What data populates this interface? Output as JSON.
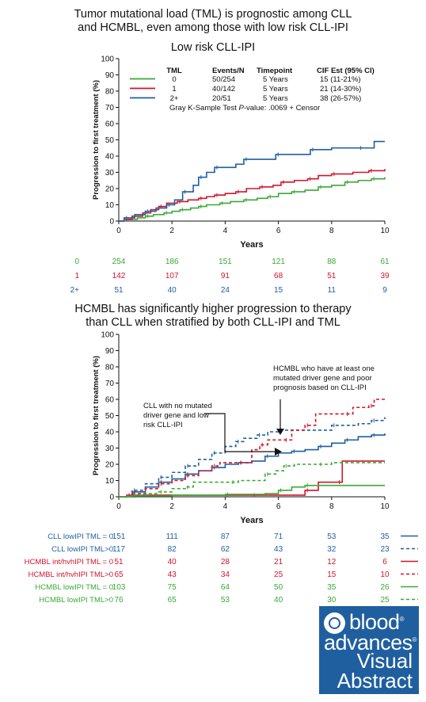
{
  "header": {
    "line1": "Tumor mutational load (TML) is prognostic among CLL",
    "line2": "and HCMBL, even among those with low risk CLL-IPI"
  },
  "bottom_header": {
    "line1": "HCMBL has significantly higher progression to therapy",
    "line2": "than CLL when stratified by both CLL-IPI and TML"
  },
  "colors": {
    "green": "#3aa935",
    "red": "#d0152b",
    "blue": "#1f5f9f",
    "dark": "#111111"
  },
  "chart_data": [
    {
      "type": "line",
      "title": "Low risk CLL-IPI",
      "xlabel": "Years",
      "ylabel": "Progression to first treatment (%)",
      "xlim": [
        0,
        10
      ],
      "ylim": [
        0,
        100
      ],
      "xticks": [
        0,
        2,
        4,
        6,
        8,
        10
      ],
      "yticks": [
        0,
        10,
        20,
        30,
        40,
        50,
        60,
        70,
        80,
        90,
        100
      ],
      "legend_table": {
        "headers": [
          "TML",
          "Events/N",
          "Timepoint",
          "CIF Est (95% CI)"
        ],
        "rows": [
          [
            "0",
            "50/254",
            "5 Years",
            "15 (11-21%)"
          ],
          [
            "1",
            "40/142",
            "5 Years",
            "21 (14-30%)"
          ],
          [
            "2+",
            "20/51",
            "5 Years",
            "38 (26-57%)"
          ]
        ]
      },
      "test_text": {
        "prefix": "Gray K-Sample Test ",
        "italic": "P",
        "suffix": "-value: .0069 + Censor"
      },
      "series": [
        {
          "name": "0",
          "color": "green",
          "points": [
            [
              0,
              0
            ],
            [
              0.3,
              1
            ],
            [
              0.7,
              2
            ],
            [
              1.0,
              3
            ],
            [
              1.3,
              4
            ],
            [
              1.7,
              5
            ],
            [
              2.0,
              6
            ],
            [
              2.3,
              7
            ],
            [
              2.7,
              8
            ],
            [
              3.0,
              9
            ],
            [
              3.3,
              10
            ],
            [
              3.8,
              11
            ],
            [
              4.2,
              12
            ],
            [
              4.7,
              13
            ],
            [
              5.2,
              14
            ],
            [
              5.6,
              15
            ],
            [
              6.0,
              17
            ],
            [
              6.5,
              18
            ],
            [
              7.0,
              19
            ],
            [
              7.5,
              21
            ],
            [
              8.0,
              22
            ],
            [
              8.5,
              24
            ],
            [
              9.0,
              25
            ],
            [
              9.5,
              26
            ],
            [
              10.0,
              27
            ]
          ]
        },
        {
          "name": "1",
          "color": "red",
          "points": [
            [
              0,
              0
            ],
            [
              0.2,
              1
            ],
            [
              0.5,
              3
            ],
            [
              0.9,
              5
            ],
            [
              1.2,
              7
            ],
            [
              1.5,
              9
            ],
            [
              1.8,
              11
            ],
            [
              2.2,
              12
            ],
            [
              2.6,
              13
            ],
            [
              3.0,
              14
            ],
            [
              3.3,
              15
            ],
            [
              3.6,
              16
            ],
            [
              4.0,
              17
            ],
            [
              4.4,
              18
            ],
            [
              4.8,
              20
            ],
            [
              5.3,
              21
            ],
            [
              5.8,
              22
            ],
            [
              6.1,
              24
            ],
            [
              6.6,
              25
            ],
            [
              7.1,
              26
            ],
            [
              7.5,
              28
            ],
            [
              8.0,
              29
            ],
            [
              8.8,
              30
            ],
            [
              9.4,
              31
            ],
            [
              10.0,
              32
            ]
          ]
        },
        {
          "name": "2+",
          "color": "blue",
          "points": [
            [
              0,
              0
            ],
            [
              0.2,
              2
            ],
            [
              0.6,
              4
            ],
            [
              1.0,
              6
            ],
            [
              1.4,
              8
            ],
            [
              1.8,
              10
            ],
            [
              2.1,
              13
            ],
            [
              2.4,
              18
            ],
            [
              2.8,
              22
            ],
            [
              3.0,
              27
            ],
            [
              3.3,
              30
            ],
            [
              3.6,
              33
            ],
            [
              4.4,
              35
            ],
            [
              4.7,
              38
            ],
            [
              5.6,
              38
            ],
            [
              5.9,
              41
            ],
            [
              7.0,
              41
            ],
            [
              7.2,
              44
            ],
            [
              8.0,
              45
            ],
            [
              9.0,
              45
            ],
            [
              9.6,
              49
            ],
            [
              10.0,
              49
            ]
          ]
        }
      ],
      "risk_table": {
        "rows": [
          {
            "label": "0",
            "color": "green",
            "values": [
              "254",
              "186",
              "151",
              "121",
              "88",
              "61"
            ]
          },
          {
            "label": "1",
            "color": "red",
            "values": [
              "142",
              "107",
              "91",
              "68",
              "51",
              "39"
            ]
          },
          {
            "label": "2+",
            "color": "blue",
            "values": [
              "51",
              "40",
              "24",
              "15",
              "11",
              "9"
            ]
          }
        ]
      }
    },
    {
      "type": "line",
      "title": "",
      "xlabel": "Years",
      "ylabel": "Progression to first treatment (%)",
      "xlim": [
        0,
        10
      ],
      "ylim": [
        0,
        100
      ],
      "xticks": [
        0,
        2,
        4,
        6,
        8,
        10
      ],
      "yticks": [
        0,
        10,
        20,
        30,
        40,
        50,
        60,
        70,
        80,
        90,
        100
      ],
      "annotations": [
        {
          "lines": [
            "HCMBL who have at least one",
            "mutated driver gene and poor",
            "prognosis based on CLL-IPI"
          ]
        },
        {
          "lines": [
            "CLL with no mutated",
            "driver gene and low",
            "risk CLL-IPI"
          ]
        }
      ],
      "series": [
        {
          "name": "CLL lowIPI TML = 0",
          "color": "blue",
          "dash": false,
          "points": [
            [
              0,
              0
            ],
            [
              0.5,
              3
            ],
            [
              1.0,
              6
            ],
            [
              1.5,
              9
            ],
            [
              2.0,
              11
            ],
            [
              2.5,
              14
            ],
            [
              3.0,
              16
            ],
            [
              3.5,
              18
            ],
            [
              4.0,
              20
            ],
            [
              4.5,
              21
            ],
            [
              5.0,
              22
            ],
            [
              5.5,
              25
            ],
            [
              6.0,
              27
            ],
            [
              6.5,
              28
            ],
            [
              7.0,
              29
            ],
            [
              7.5,
              31
            ],
            [
              8.0,
              33
            ],
            [
              8.5,
              35
            ],
            [
              9.0,
              37
            ],
            [
              9.5,
              38
            ],
            [
              10.0,
              39
            ]
          ]
        },
        {
          "name": "CLL lowIPI TML>0",
          "color": "blue",
          "dash": true,
          "points": [
            [
              0,
              0
            ],
            [
              0.5,
              4
            ],
            [
              1.0,
              8
            ],
            [
              1.5,
              12
            ],
            [
              2.0,
              15
            ],
            [
              2.5,
              19
            ],
            [
              3.0,
              23
            ],
            [
              3.5,
              27
            ],
            [
              4.0,
              31
            ],
            [
              4.4,
              34
            ],
            [
              4.7,
              36
            ],
            [
              5.2,
              38
            ],
            [
              5.6,
              40
            ],
            [
              6.0,
              41
            ],
            [
              7.5,
              41
            ],
            [
              8.0,
              44
            ],
            [
              9.0,
              45
            ],
            [
              9.5,
              47
            ],
            [
              10.0,
              49
            ]
          ]
        },
        {
          "name": "HCMBL int/hvhIPI TML = 0",
          "color": "red",
          "dash": false,
          "points": [
            [
              0,
              0
            ],
            [
              0.3,
              1
            ],
            [
              1.0,
              1
            ],
            [
              5.0,
              1
            ],
            [
              6.5,
              1
            ],
            [
              7.0,
              4
            ],
            [
              7.5,
              9
            ],
            [
              8.2,
              9
            ],
            [
              8.4,
              22
            ],
            [
              10.0,
              22
            ]
          ]
        },
        {
          "name": "HCMBL int/hvhIPI TML>0",
          "color": "red",
          "dash": true,
          "points": [
            [
              0,
              0
            ],
            [
              0.5,
              2
            ],
            [
              1.0,
              5
            ],
            [
              1.5,
              8
            ],
            [
              2.0,
              10
            ],
            [
              2.5,
              13
            ],
            [
              3.0,
              16
            ],
            [
              3.5,
              19
            ],
            [
              3.8,
              21
            ],
            [
              4.5,
              21
            ],
            [
              5.0,
              29
            ],
            [
              5.3,
              32
            ],
            [
              5.6,
              35
            ],
            [
              6.2,
              35
            ],
            [
              6.5,
              41
            ],
            [
              7.0,
              44
            ],
            [
              7.4,
              51
            ],
            [
              8.5,
              51
            ],
            [
              8.8,
              55
            ],
            [
              9.4,
              56
            ],
            [
              9.6,
              60
            ],
            [
              10.0,
              61
            ]
          ]
        },
        {
          "name": "HCMBL lowIPI TML = 0",
          "color": "green",
          "dash": false,
          "points": [
            [
              0,
              0
            ],
            [
              0.5,
              0.5
            ],
            [
              2.0,
              1
            ],
            [
              4.0,
              1.5
            ],
            [
              5.5,
              2
            ],
            [
              6.0,
              4
            ],
            [
              6.5,
              6
            ],
            [
              7.0,
              7
            ],
            [
              10.0,
              7
            ]
          ]
        },
        {
          "name": "HCMBL lowIPI TML>0",
          "color": "green",
          "dash": true,
          "points": [
            [
              0,
              0
            ],
            [
              0.5,
              1
            ],
            [
              1.0,
              2
            ],
            [
              1.5,
              3
            ],
            [
              2.0,
              5
            ],
            [
              2.5,
              6
            ],
            [
              2.8,
              9
            ],
            [
              4.2,
              9
            ],
            [
              4.5,
              10
            ],
            [
              5.5,
              14
            ],
            [
              5.9,
              16
            ],
            [
              6.2,
              19
            ],
            [
              6.6,
              20
            ],
            [
              7.5,
              20
            ],
            [
              8.0,
              21
            ],
            [
              10.0,
              21
            ]
          ]
        }
      ],
      "risk_table": {
        "rows": [
          {
            "label": "CLL lowIPI TML = 0",
            "color": "blue",
            "dash": false,
            "values": [
              "151",
              "111",
              "87",
              "71",
              "53",
              "35"
            ]
          },
          {
            "label": "CLL lowIPI TML>0",
            "color": "blue",
            "dash": true,
            "values": [
              "117",
              "82",
              "62",
              "43",
              "32",
              "23"
            ]
          },
          {
            "label": "HCMBL int/hvhIPI TML = 0",
            "color": "red",
            "dash": false,
            "values": [
              "51",
              "40",
              "28",
              "21",
              "12",
              "6"
            ]
          },
          {
            "label": "HCMBL int/hvhIPI TML>0",
            "color": "red",
            "dash": true,
            "values": [
              "65",
              "43",
              "34",
              "25",
              "15",
              "10"
            ]
          },
          {
            "label": "HCMBL lowIPI TML = 0",
            "color": "green",
            "dash": false,
            "values": [
              "103",
              "75",
              "64",
              "50",
              "35",
              "26"
            ]
          },
          {
            "label": "HCMBL lowIPI TML>0",
            "color": "green",
            "dash": true,
            "values": [
              "76",
              "65",
              "53",
              "40",
              "30",
              "25"
            ]
          }
        ]
      }
    }
  ],
  "logo": {
    "word1": "blood",
    "word2": "advances",
    "word3": "Visual",
    "word4": "Abstract",
    "mark": "®"
  }
}
